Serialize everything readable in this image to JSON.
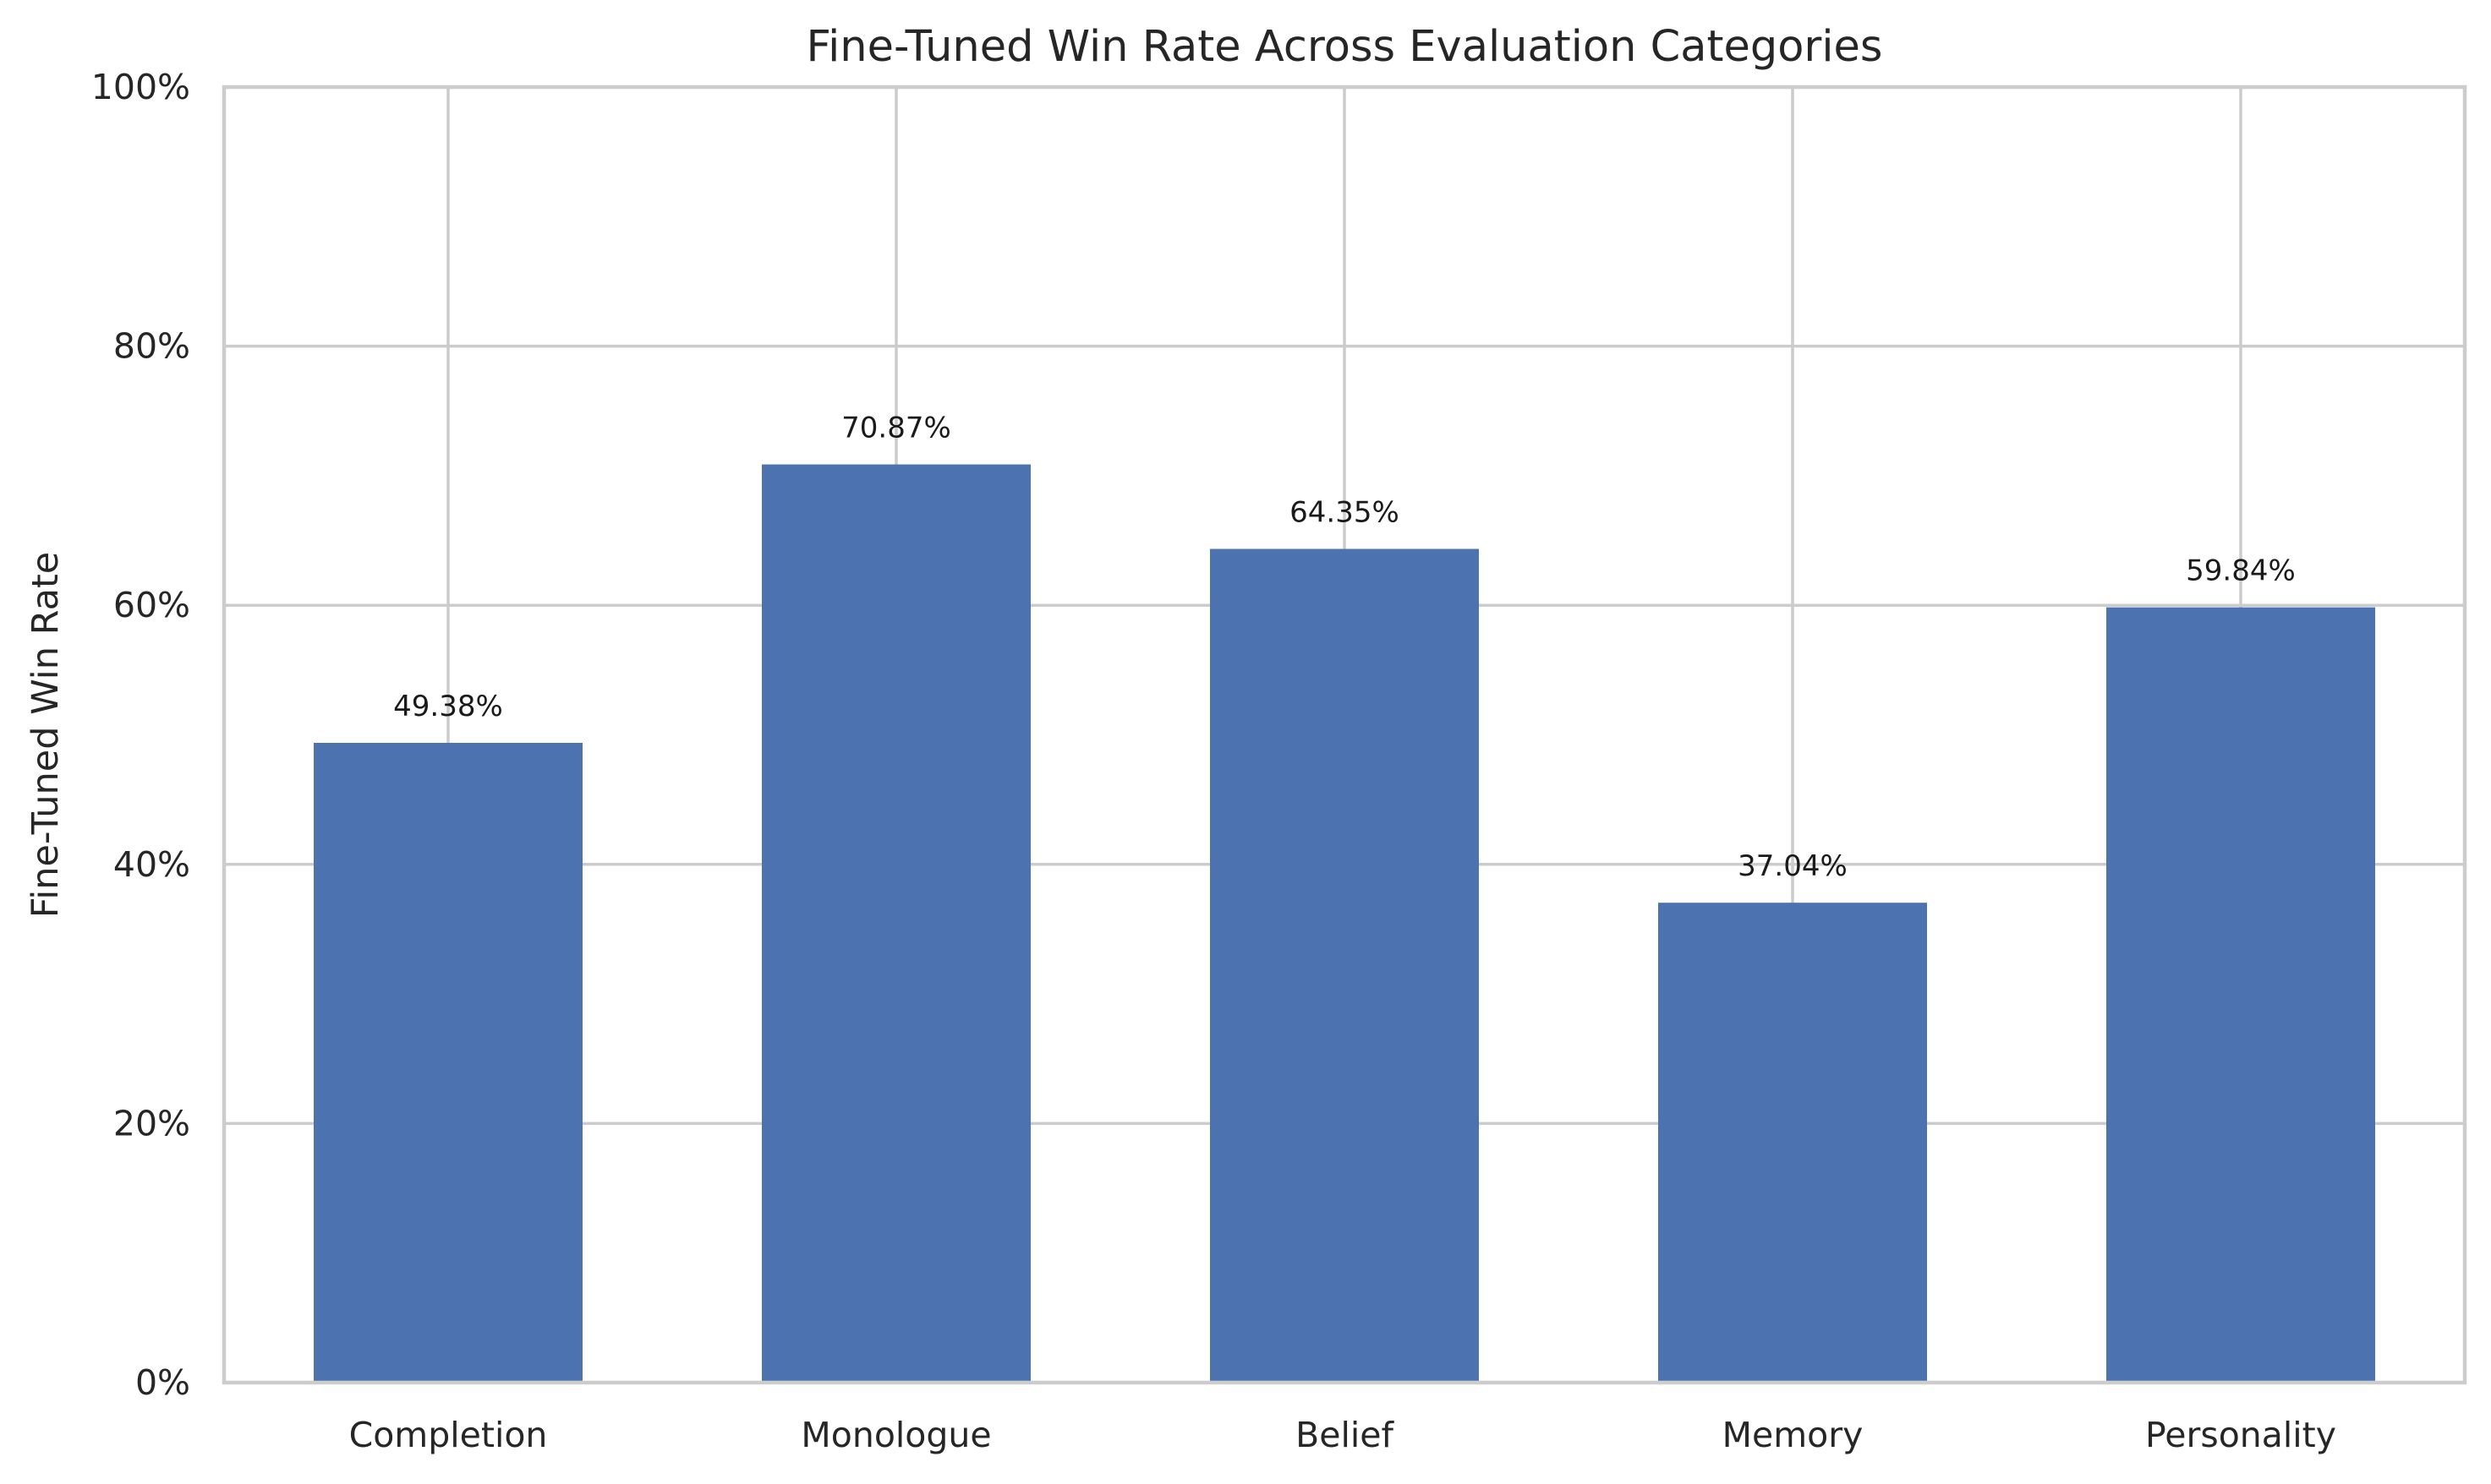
{
  "chart_data": {
    "type": "bar",
    "title": "Fine-Tuned Win Rate Across Evaluation Categories",
    "xlabel": "",
    "ylabel": "Fine-Tuned Win Rate",
    "categories": [
      "Completion",
      "Monologue",
      "Belief",
      "Memory",
      "Personality"
    ],
    "values": [
      49.38,
      70.87,
      64.35,
      37.04,
      59.84
    ],
    "data_labels": [
      "49.38%",
      "70.87%",
      "64.35%",
      "37.04%",
      "59.84%"
    ],
    "ylim": [
      0,
      100
    ],
    "yticks": [
      0,
      20,
      40,
      60,
      80,
      100
    ],
    "ytick_labels": [
      "0%",
      "20%",
      "40%",
      "60%",
      "80%",
      "100%"
    ],
    "grid": true,
    "legend": "none",
    "bar_color": "#4c72b0",
    "grid_color": "#cccccc"
  }
}
